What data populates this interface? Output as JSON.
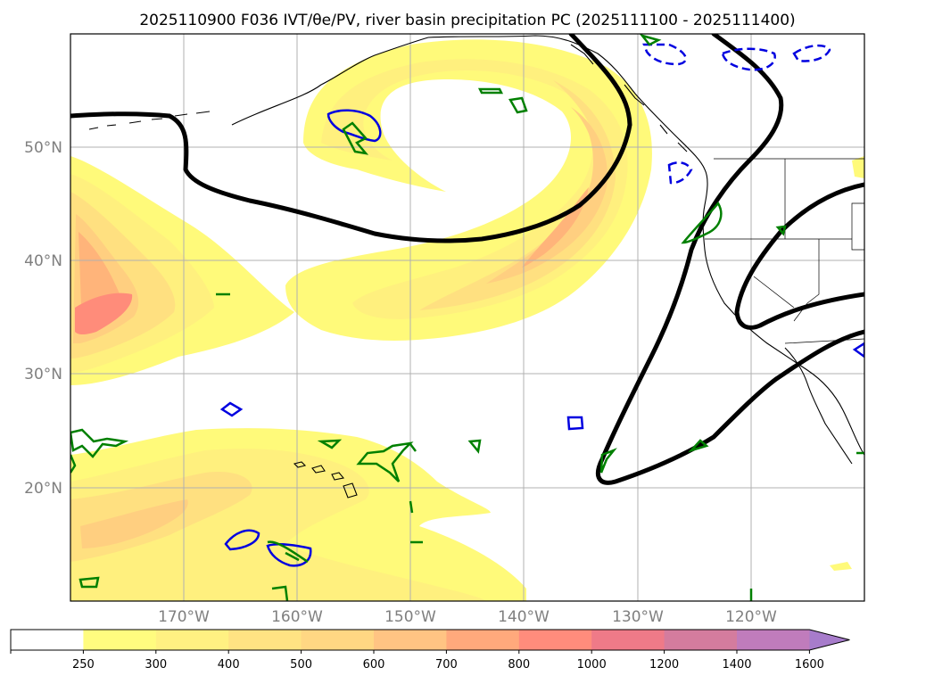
{
  "title": "2025110900 F036 IVT/θe/PV, river basin precipitation PC (2025111100 - 2025111400)",
  "map": {
    "lon_range": [
      180,
      110
    ],
    "lat_range": [
      10,
      60
    ],
    "lat_labels": [
      {
        "value": 50,
        "label": "50°N"
      },
      {
        "value": 40,
        "label": "40°N"
      },
      {
        "value": 30,
        "label": "30°N"
      },
      {
        "value": 20,
        "label": "20°N"
      }
    ],
    "lon_labels": [
      {
        "value": 170,
        "label": "170°W"
      },
      {
        "value": 160,
        "label": "160°W"
      },
      {
        "value": 150,
        "label": "150°W"
      },
      {
        "value": 140,
        "label": "140°W"
      },
      {
        "value": 130,
        "label": "130°W"
      },
      {
        "value": 120,
        "label": "120°W"
      }
    ],
    "ivt_fill_colors": [
      "#fffa7a",
      "#fff07e",
      "#ffe080",
      "#ffcf80",
      "#ffb47a",
      "#ffa07a",
      "#ff8c7a"
    ],
    "theta_e_color": "#000000",
    "pv_solid_color": "#0000e0",
    "pv_dashed_color": "#0000e0",
    "green_contour_color": "#008000"
  },
  "colorbar": {
    "labels": [
      "250",
      "300",
      "400",
      "500",
      "600",
      "700",
      "800",
      "1000",
      "1200",
      "1400",
      "1600"
    ],
    "colors": [
      "#ffffff",
      "#fffc7f",
      "#fff182",
      "#ffe383",
      "#ffd783",
      "#ffc483",
      "#ffa97c",
      "#ff8c7c",
      "#ef7a88",
      "#d47c9e",
      "#c07cbc",
      "#a77ccb"
    ]
  }
}
